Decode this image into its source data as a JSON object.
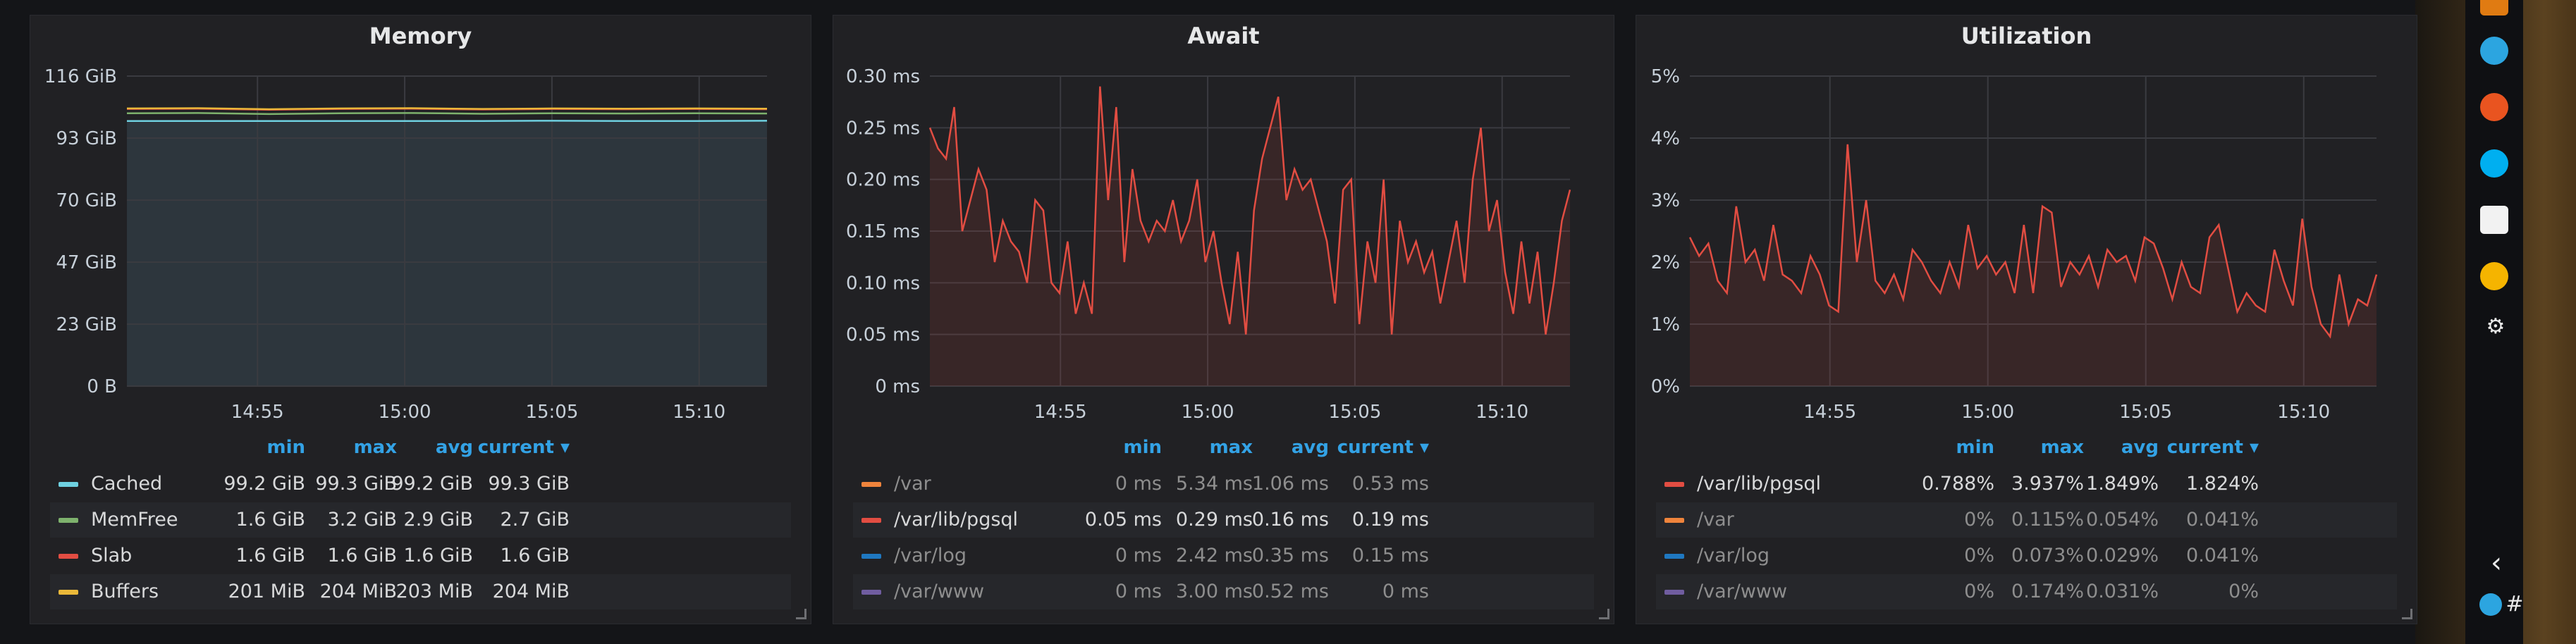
{
  "panels": [
    {
      "id": "memory",
      "title": "Memory",
      "legend_headers": {
        "min": "min",
        "max": "max",
        "avg": "avg",
        "current": "current ▾"
      },
      "legend": [
        {
          "name": "Cached",
          "color": "#6ed0e0",
          "min": "99.2 GiB",
          "max": "99.3 GiB",
          "avg": "99.2 GiB",
          "current": "99.3 GiB",
          "dim": false
        },
        {
          "name": "MemFree",
          "color": "#7eb26d",
          "min": "1.6 GiB",
          "max": "3.2 GiB",
          "avg": "2.9 GiB",
          "current": "2.7 GiB",
          "dim": false
        },
        {
          "name": "Slab",
          "color": "#e24d42",
          "min": "1.6 GiB",
          "max": "1.6 GiB",
          "avg": "1.6 GiB",
          "current": "1.6 GiB",
          "dim": false
        },
        {
          "name": "Buffers",
          "color": "#eab839",
          "min": "201 MiB",
          "max": "204 MiB",
          "avg": "203 MiB",
          "current": "204 MiB",
          "dim": false
        }
      ]
    },
    {
      "id": "await",
      "title": "Await",
      "legend_headers": {
        "min": "min",
        "max": "max",
        "avg": "avg",
        "current": "current ▾"
      },
      "legend": [
        {
          "name": "/var",
          "color": "#ef843c",
          "min": "0 ms",
          "max": "5.34 ms",
          "avg": "1.06 ms",
          "current": "0.53 ms",
          "dim": true
        },
        {
          "name": "/var/lib/pgsql",
          "color": "#e24d42",
          "min": "0.05 ms",
          "max": "0.29 ms",
          "avg": "0.16 ms",
          "current": "0.19 ms",
          "dim": false
        },
        {
          "name": "/var/log",
          "color": "#1f78c1",
          "min": "0 ms",
          "max": "2.42 ms",
          "avg": "0.35 ms",
          "current": "0.15 ms",
          "dim": true
        },
        {
          "name": "/var/www",
          "color": "#705da0",
          "min": "0 ms",
          "max": "3.00 ms",
          "avg": "0.52 ms",
          "current": "0 ms",
          "dim": true
        }
      ]
    },
    {
      "id": "utilization",
      "title": "Utilization",
      "legend_headers": {
        "min": "min",
        "max": "max",
        "avg": "avg",
        "current": "current ▾"
      },
      "legend": [
        {
          "name": "/var/lib/pgsql",
          "color": "#e24d42",
          "min": "0.788%",
          "max": "3.937%",
          "avg": "1.849%",
          "current": "1.824%",
          "dim": false
        },
        {
          "name": "/var",
          "color": "#ef843c",
          "min": "0%",
          "max": "0.115%",
          "avg": "0.054%",
          "current": "0.041%",
          "dim": true
        },
        {
          "name": "/var/log",
          "color": "#1f78c1",
          "min": "0%",
          "max": "0.073%",
          "avg": "0.029%",
          "current": "0.041%",
          "dim": true
        },
        {
          "name": "/var/www",
          "color": "#705da0",
          "min": "0%",
          "max": "0.174%",
          "avg": "0.031%",
          "current": "0%",
          "dim": true
        }
      ]
    }
  ],
  "chart_data": [
    {
      "type": "area",
      "title": "Memory",
      "y_ticks": [
        "0 B",
        "23 GiB",
        "47 GiB",
        "70 GiB",
        "93 GiB",
        "116 GiB"
      ],
      "ylim": [
        0,
        116
      ],
      "x_ticks": [
        "14:55",
        "15:00",
        "15:05",
        "15:10"
      ],
      "grid": true,
      "series": [
        {
          "name": "Cached",
          "color": "#6ed0e0",
          "values": [
            99.2,
            99.2,
            99.2,
            99.2,
            99.2,
            99.2,
            99.3,
            99.2,
            99.2,
            99.3
          ]
        },
        {
          "name": "MemFree",
          "color": "#7eb26d",
          "values": [
            102.1,
            102.2,
            101.8,
            102.1,
            102.2,
            101.9,
            102.1,
            102.0,
            102.1,
            102.0
          ]
        },
        {
          "name": "Slab",
          "color": "#e24d42",
          "values": [
            103.7,
            103.8,
            103.4,
            103.7,
            103.8,
            103.5,
            103.7,
            103.6,
            103.7,
            103.6
          ]
        },
        {
          "name": "Buffers",
          "color": "#eab839",
          "values": [
            103.9,
            104.0,
            103.6,
            103.9,
            104.0,
            103.7,
            103.9,
            103.8,
            103.9,
            103.8
          ]
        }
      ]
    },
    {
      "type": "area",
      "title": "Await",
      "y_ticks": [
        "0 ms",
        "0.05 ms",
        "0.10 ms",
        "0.15 ms",
        "0.20 ms",
        "0.25 ms",
        "0.30 ms"
      ],
      "ylim": [
        0,
        0.3
      ],
      "x_ticks": [
        "14:55",
        "15:00",
        "15:05",
        "15:10"
      ],
      "grid": true,
      "series": [
        {
          "name": "/var/lib/pgsql",
          "color": "#e24d42",
          "values": [
            0.25,
            0.23,
            0.22,
            0.27,
            0.15,
            0.18,
            0.21,
            0.19,
            0.12,
            0.16,
            0.14,
            0.13,
            0.1,
            0.18,
            0.17,
            0.1,
            0.09,
            0.14,
            0.07,
            0.1,
            0.07,
            0.29,
            0.18,
            0.27,
            0.12,
            0.21,
            0.16,
            0.14,
            0.16,
            0.15,
            0.18,
            0.14,
            0.16,
            0.2,
            0.12,
            0.15,
            0.1,
            0.06,
            0.13,
            0.05,
            0.17,
            0.22,
            0.25,
            0.28,
            0.18,
            0.21,
            0.19,
            0.2,
            0.17,
            0.14,
            0.08,
            0.19,
            0.2,
            0.06,
            0.14,
            0.1,
            0.2,
            0.05,
            0.16,
            0.12,
            0.14,
            0.11,
            0.13,
            0.08,
            0.12,
            0.16,
            0.1,
            0.2,
            0.25,
            0.15,
            0.18,
            0.11,
            0.07,
            0.14,
            0.08,
            0.13,
            0.05,
            0.1,
            0.16,
            0.19
          ]
        }
      ]
    },
    {
      "type": "area",
      "title": "Utilization",
      "y_ticks": [
        "0%",
        "1%",
        "2%",
        "3%",
        "4%",
        "5%"
      ],
      "ylim": [
        0,
        5
      ],
      "x_ticks": [
        "14:55",
        "15:00",
        "15:05",
        "15:10"
      ],
      "grid": true,
      "series": [
        {
          "name": "/var/lib/pgsql",
          "color": "#e24d42",
          "values": [
            2.4,
            2.1,
            2.3,
            1.7,
            1.5,
            2.9,
            2.0,
            2.2,
            1.7,
            2.6,
            1.8,
            1.7,
            1.5,
            2.1,
            1.8,
            1.3,
            1.2,
            3.9,
            2.0,
            3.0,
            1.7,
            1.5,
            1.8,
            1.4,
            2.2,
            2.0,
            1.7,
            1.5,
            2.0,
            1.6,
            2.6,
            1.9,
            2.1,
            1.8,
            2.0,
            1.5,
            2.6,
            1.5,
            2.9,
            2.8,
            1.6,
            2.0,
            1.8,
            2.1,
            1.6,
            2.2,
            2.0,
            2.1,
            1.7,
            2.4,
            2.3,
            1.9,
            1.4,
            2.0,
            1.6,
            1.5,
            2.4,
            2.6,
            1.9,
            1.2,
            1.5,
            1.3,
            1.2,
            2.2,
            1.7,
            1.3,
            2.7,
            1.6,
            1.0,
            0.8,
            1.8,
            1.0,
            1.4,
            1.3,
            1.8
          ]
        }
      ]
    }
  ],
  "dock": {
    "icons": [
      "vlc-icon",
      "telegram-icon",
      "ubuntu-software-icon",
      "skype-icon",
      "store-icon",
      "record-icon",
      "settings-gear-icon"
    ],
    "collapse_label": "‹",
    "tray": [
      "tray-app-icon",
      "slack-icon"
    ]
  }
}
